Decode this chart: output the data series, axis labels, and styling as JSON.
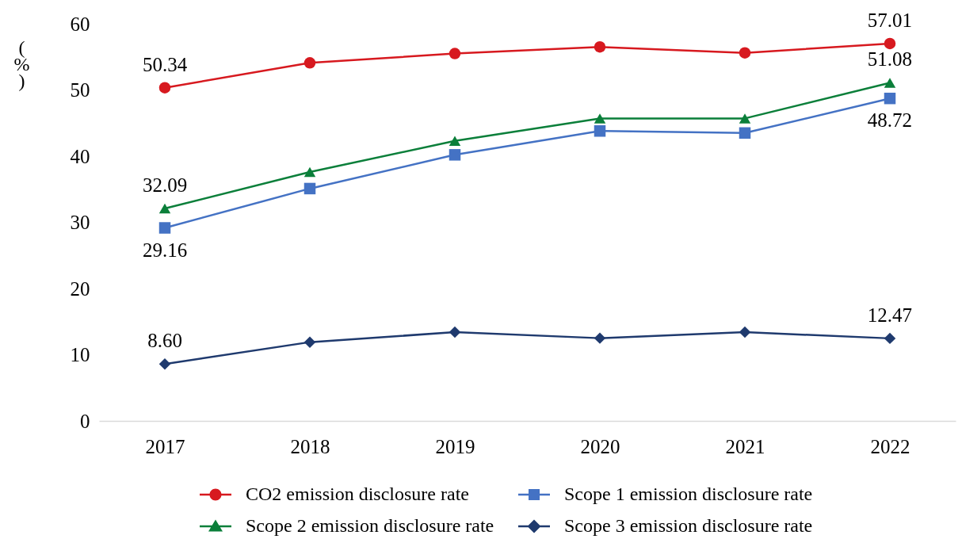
{
  "chart_data": {
    "type": "line",
    "ylabel": "(%)",
    "categories": [
      "2017",
      "2018",
      "2019",
      "2020",
      "2021",
      "2022"
    ],
    "series": [
      {
        "name": "CO2 emission disclosure rate",
        "color": "#d7191f",
        "marker": "circle",
        "values": [
          50.34,
          54.1,
          55.5,
          56.5,
          55.6,
          57.01
        ],
        "value_labels": [
          "50.34",
          null,
          null,
          null,
          null,
          "57.01"
        ]
      },
      {
        "name": "Scope 1 emission disclosure rate",
        "color": "#4472c4",
        "marker": "square",
        "values": [
          29.16,
          35.1,
          40.2,
          43.8,
          43.5,
          48.72
        ],
        "value_labels": [
          "29.16",
          null,
          null,
          null,
          null,
          "48.72"
        ]
      },
      {
        "name": "Scope 2 emission disclosure rate",
        "color": "#0b7f3a",
        "marker": "triangle",
        "values": [
          32.09,
          37.6,
          42.3,
          45.7,
          45.7,
          51.08
        ],
        "value_labels": [
          "32.09",
          null,
          null,
          null,
          null,
          "51.08"
        ]
      },
      {
        "name": "Scope 3 emission disclosure rate",
        "color": "#1f3a6e",
        "marker": "diamond",
        "values": [
          8.6,
          11.9,
          13.4,
          12.5,
          13.4,
          12.47
        ],
        "value_labels": [
          "8.60",
          null,
          null,
          null,
          null,
          "12.47"
        ]
      }
    ],
    "ylim": [
      0,
      60
    ],
    "yticks": [
      0,
      10,
      20,
      30,
      40,
      50,
      60
    ],
    "legend": "bottom",
    "line_style": "solid"
  }
}
